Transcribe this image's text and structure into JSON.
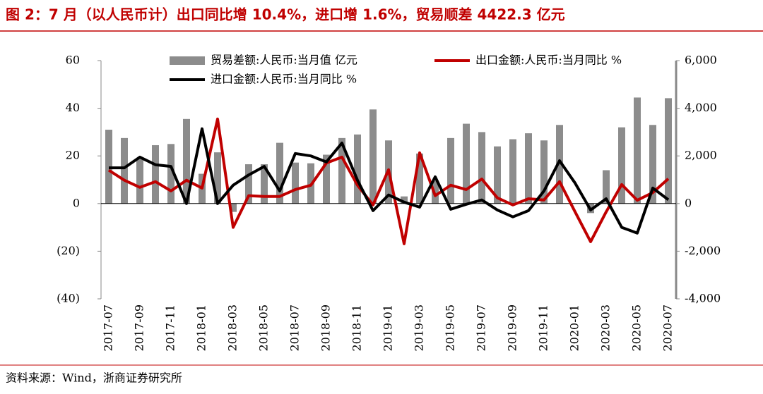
{
  "chart_data": {
    "type": "bar_line",
    "title": "图 2：7 月（以人民币计）出口同比增 10.4%，进口增 1.6%，贸易顺差 4422.3 亿元",
    "source": "资料来源：Wind，浙商证券研究所",
    "categories": [
      "2017-07",
      null,
      "2017-09",
      null,
      "2017-11",
      null,
      "2018-01",
      null,
      "2018-03",
      null,
      "2018-05",
      null,
      "2018-07",
      null,
      "2018-09",
      null,
      "2018-11",
      null,
      "2019-01",
      null,
      "2019-03",
      null,
      "2019-05",
      null,
      "2019-07",
      null,
      "2019-09",
      null,
      "2019-11",
      null,
      "2020-01",
      null,
      "2020-03",
      null,
      "2020-05",
      null,
      "2020-07"
    ],
    "series": [
      {
        "name": "贸易差额:人民币:当月值 亿元",
        "kind": "bar",
        "axis": "y2",
        "color": "#8c8c8c",
        "values": [
          3100,
          2750,
          1900,
          2450,
          2500,
          3550,
          1250,
          2150,
          -350,
          1650,
          1650,
          2550,
          1720,
          1690,
          2050,
          2750,
          2900,
          3950,
          2650,
          300,
          2100,
          950,
          2750,
          3350,
          3000,
          2400,
          2700,
          2950,
          2650,
          3300,
          null,
          -400,
          1400,
          3200,
          4450,
          3300,
          4422.3
        ]
      },
      {
        "name": "出口金额:人民币:当月同比 %",
        "kind": "line",
        "color": "#c00000",
        "values": [
          14,
          9.8,
          6.8,
          9.2,
          5.3,
          9.8,
          6.5,
          35.5,
          -10,
          3.3,
          3,
          3,
          5.9,
          7.7,
          17,
          19.5,
          7.7,
          -0.6,
          14.2,
          -16.9,
          21.3,
          3.3,
          7.7,
          5.9,
          10.3,
          2.4,
          -0.6,
          2,
          1.5,
          9.2,
          -3.5,
          -16,
          -3.5,
          8,
          1.4,
          4.6,
          10.4
        ]
      },
      {
        "name": "进口金额:人民币:当月同比 %",
        "kind": "line",
        "color": "#000000",
        "values": [
          15,
          15,
          19.5,
          16.3,
          15.6,
          0,
          31.4,
          0,
          7.7,
          12,
          15.6,
          5.3,
          21,
          20,
          17.5,
          25.4,
          9.8,
          -3,
          3.6,
          0.6,
          -1.5,
          11.2,
          -2.4,
          -0.3,
          1.5,
          -2.7,
          -5.6,
          -3,
          5.3,
          18,
          8.6,
          -2.7,
          2,
          -10,
          -12.4,
          6.5,
          1.6
        ]
      }
    ],
    "ylim": [
      -40,
      60
    ],
    "yticks": [
      {
        "value": -40,
        "label": "(40)"
      },
      {
        "value": -20,
        "label": "(20)"
      },
      0,
      20,
      40,
      60
    ],
    "y2lim": [
      -4000,
      6000
    ],
    "y2ticks": [
      {
        "value": -4000,
        "label": "-4,000"
      },
      {
        "value": -2000,
        "label": "-2,000"
      },
      0,
      {
        "value": 2000,
        "label": "2,000"
      },
      {
        "value": 4000,
        "label": "4,000"
      },
      {
        "value": 6000,
        "label": "6,000"
      }
    ]
  }
}
